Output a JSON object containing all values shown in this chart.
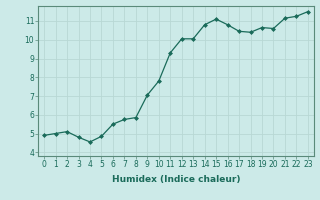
{
  "x": [
    0,
    1,
    2,
    3,
    4,
    5,
    6,
    7,
    8,
    9,
    10,
    11,
    12,
    13,
    14,
    15,
    16,
    17,
    18,
    19,
    20,
    21,
    22,
    23
  ],
  "y": [
    4.9,
    5.0,
    5.1,
    4.8,
    4.55,
    4.85,
    5.5,
    5.75,
    5.85,
    7.05,
    7.8,
    9.3,
    10.05,
    10.05,
    10.8,
    11.1,
    10.8,
    10.45,
    10.4,
    10.65,
    10.6,
    11.15,
    11.25,
    11.5
  ],
  "line_color": "#1a6b5a",
  "marker": "D",
  "markersize": 2.0,
  "background_color": "#cceae8",
  "grid_color": "#b8d8d4",
  "xlabel": "Humidex (Indice chaleur)",
  "xlim": [
    -0.5,
    23.5
  ],
  "ylim": [
    3.8,
    11.8
  ],
  "yticks": [
    4,
    5,
    6,
    7,
    8,
    9,
    10,
    11
  ],
  "xticks": [
    0,
    1,
    2,
    3,
    4,
    5,
    6,
    7,
    8,
    9,
    10,
    11,
    12,
    13,
    14,
    15,
    16,
    17,
    18,
    19,
    20,
    21,
    22,
    23
  ],
  "tick_color": "#1a6b5a",
  "label_color": "#1a6b5a",
  "spine_color": "#5a8a7a",
  "fontsize_ticks": 5.5,
  "fontsize_xlabel": 6.5,
  "linewidth": 0.9
}
